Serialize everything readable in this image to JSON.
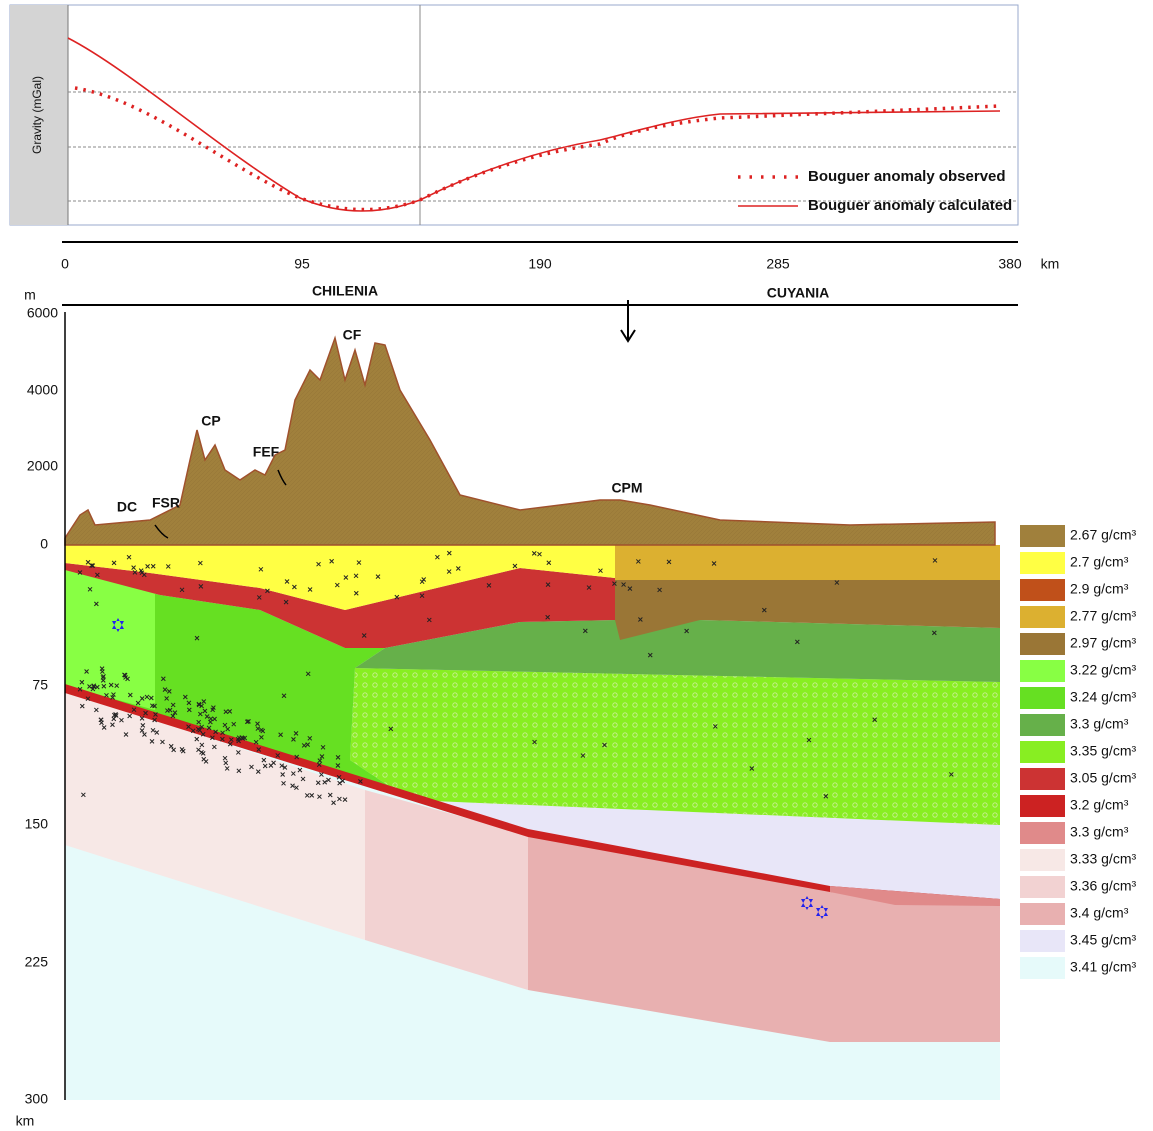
{
  "gravity_profile": {
    "y_axis_label": "Gravity (mGal)",
    "legend": [
      "Bouguer anomaly observed",
      "Bouguer anomaly calculated"
    ],
    "x_ticks": [
      "0",
      "95",
      "190",
      "285",
      "380"
    ],
    "x_unit": "km"
  },
  "cross_section": {
    "elevation_unit": "m",
    "elevation_ticks": [
      "6000",
      "4000",
      "2000",
      "0"
    ],
    "depth_ticks": [
      "75",
      "150",
      "225",
      "300"
    ],
    "depth_unit": "km",
    "terranes": [
      "CHILENIA",
      "CUYANIA"
    ],
    "features": [
      "DC",
      "FSR",
      "CP",
      "FEF",
      "CF",
      "CPM"
    ],
    "legend": [
      {
        "label": "2.67 g/cm³",
        "color": "#a0803c"
      },
      {
        "label": "2.7 g/cm³",
        "color": "#ffff44"
      },
      {
        "label": "2.9 g/cm³",
        "color": "#c0501a"
      },
      {
        "label": "2.77 g/cm³",
        "color": "#dcb030"
      },
      {
        "label": "2.97 g/cm³",
        "color": "#9a7636"
      },
      {
        "label": "3.22 g/cm³",
        "color": "#88ff44"
      },
      {
        "label": "3.24 g/cm³",
        "color": "#66e022"
      },
      {
        "label": "3.3 g/cm³",
        "color": "#66b04a"
      },
      {
        "label": "3.35 g/cm³",
        "color": "#88ee22"
      },
      {
        "label": "3.05 g/cm³",
        "color": "#cc3333"
      },
      {
        "label": "3.2 g/cm³",
        "color": "#cc2222"
      },
      {
        "label": "3.3 g/cm³",
        "color": "#e08a8a"
      },
      {
        "label": "3.33 g/cm³",
        "color": "#f7e8e6"
      },
      {
        "label": "3.36 g/cm³",
        "color": "#f2d2d2"
      },
      {
        "label": "3.4 g/cm³",
        "color": "#e8b0b0"
      },
      {
        "label": "3.45 g/cm³",
        "color": "#e8e6f8"
      },
      {
        "label": "3.41 g/cm³",
        "color": "#e6fafa"
      }
    ]
  }
}
